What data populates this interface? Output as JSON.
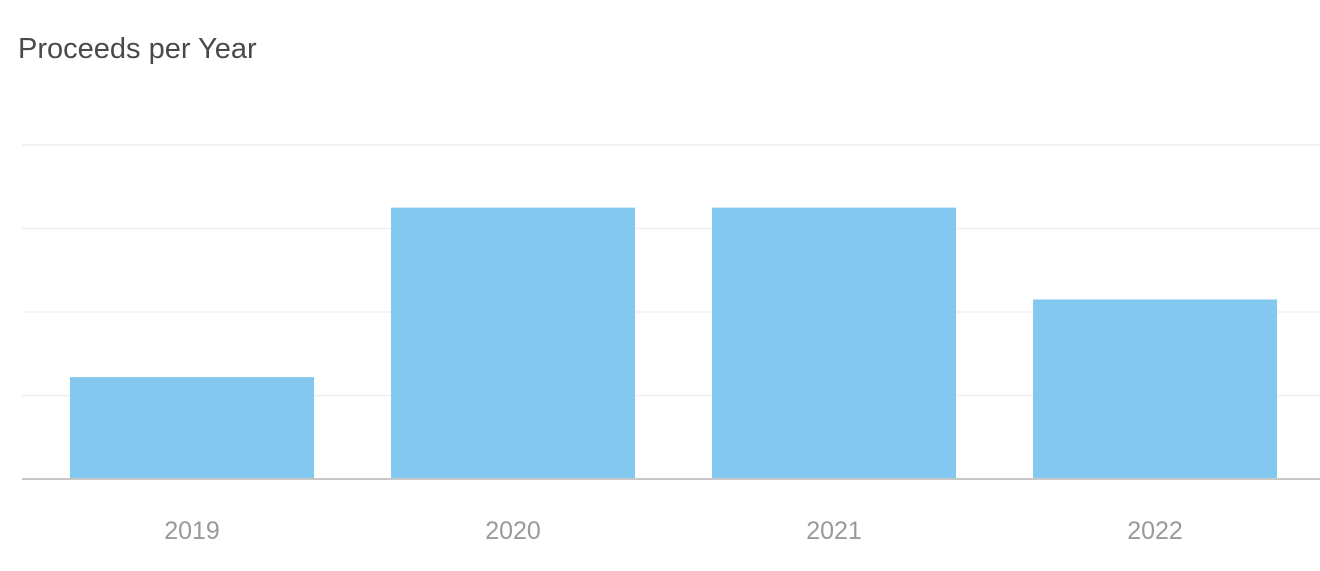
{
  "colors": {
    "bar": "#82c8ef",
    "grid": "#f0f0f0",
    "axis": "#c8c8c8",
    "title": "#4a4a4a",
    "tick_label": "#9a9a9a"
  },
  "chart_data": {
    "type": "bar",
    "title": "Proceeds per Year",
    "xlabel": "",
    "ylabel": "",
    "categories": [
      "2019",
      "2020",
      "2021",
      "2022"
    ],
    "values": [
      1.22,
      3.25,
      3.25,
      2.15
    ],
    "ylim": [
      0,
      4
    ],
    "grid": true,
    "y_tick_labels_shown": false,
    "legend": "none"
  }
}
